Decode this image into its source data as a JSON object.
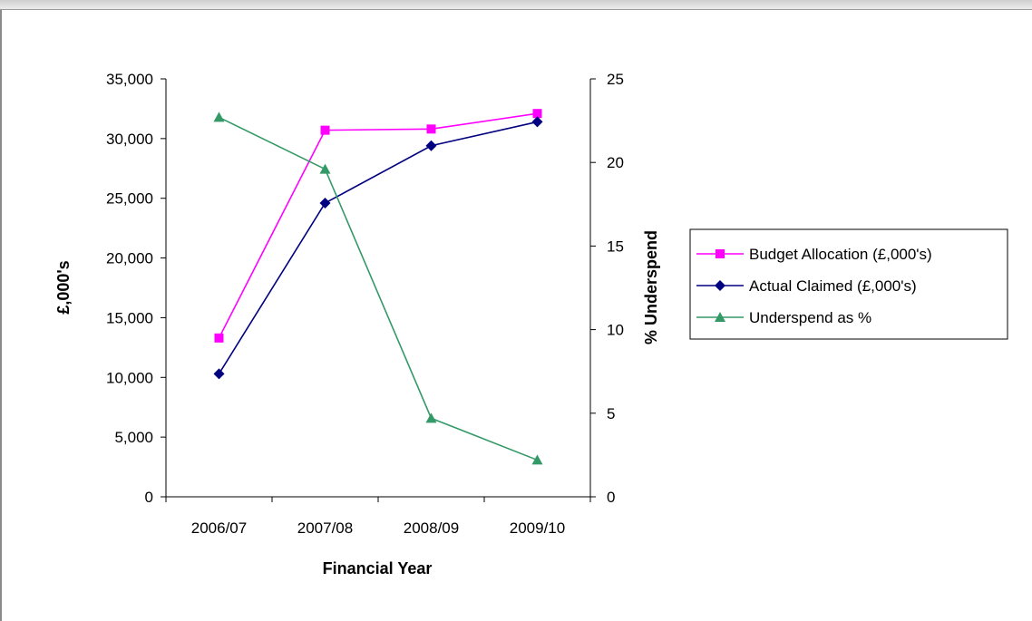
{
  "chart_data": {
    "type": "line",
    "categories": [
      "2006/07",
      "2007/08",
      "2008/09",
      "2009/10"
    ],
    "xlabel": "Financial Year",
    "ylabel": "£,000's",
    "y2label": "% Underspend",
    "ylim": [
      0,
      35000
    ],
    "y2lim": [
      0,
      25
    ],
    "yticks": [
      0,
      5000,
      10000,
      15000,
      20000,
      25000,
      30000,
      35000
    ],
    "yticklabels": [
      "0",
      "5,000",
      "10,000",
      "15,000",
      "20,000",
      "25,000",
      "30,000",
      "35,000"
    ],
    "y2ticks": [
      0,
      5,
      10,
      15,
      20,
      25
    ],
    "y2ticklabels": [
      "0",
      "5",
      "10",
      "15",
      "20",
      "25"
    ],
    "grid": false,
    "legend_position": "right",
    "series": [
      {
        "name": "Budget Allocation (£,000's)",
        "axis": "left",
        "marker": "square",
        "color": "#ff00ff",
        "values": [
          13300,
          30700,
          30800,
          32100
        ]
      },
      {
        "name": "Actual Claimed (£,000's)",
        "axis": "left",
        "marker": "diamond",
        "color": "#000080",
        "values": [
          10300,
          24600,
          29400,
          31400
        ]
      },
      {
        "name": "Underspend as %",
        "axis": "right",
        "marker": "triangle",
        "color": "#339966",
        "values": [
          22.7,
          19.6,
          4.7,
          2.2
        ]
      }
    ]
  }
}
